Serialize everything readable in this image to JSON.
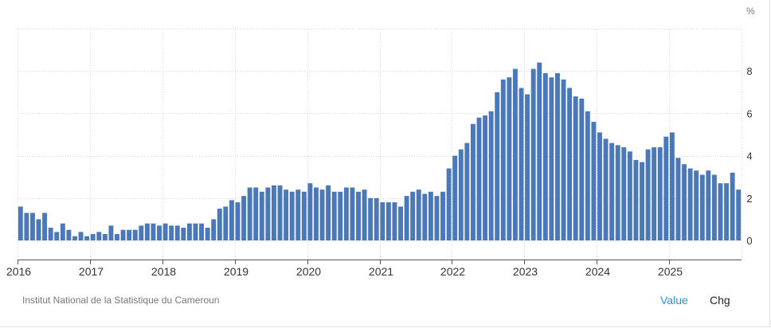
{
  "unit_label": "%",
  "source": "Institut National de la Statistique du Cameroun",
  "toggles": {
    "value": "Value",
    "chg": "Chg"
  },
  "colors": {
    "bar": "#4a78b9",
    "active_toggle": "#2a93d5",
    "grid": "#d9d9d9"
  },
  "chart_data": {
    "type": "bar",
    "title": "",
    "xlabel": "",
    "ylabel": "%",
    "ylim": [
      -0.9,
      10
    ],
    "y_ticks": [
      0,
      2,
      4,
      6,
      8
    ],
    "x_tick_labels": [
      "2016",
      "2017",
      "2018",
      "2019",
      "2020",
      "2021",
      "2022",
      "2023",
      "2024",
      "2025"
    ],
    "grid": true,
    "start_period": "2016-01",
    "frequency": "monthly",
    "values": [
      1.6,
      1.3,
      1.3,
      1.0,
      1.3,
      0.6,
      0.4,
      0.8,
      0.5,
      0.2,
      0.4,
      0.2,
      0.3,
      0.4,
      0.3,
      0.7,
      0.3,
      0.5,
      0.5,
      0.5,
      0.7,
      0.8,
      0.8,
      0.7,
      0.8,
      0.7,
      0.7,
      0.6,
      0.8,
      0.8,
      0.8,
      0.6,
      1.0,
      1.5,
      1.6,
      1.9,
      1.8,
      2.1,
      2.5,
      2.5,
      2.3,
      2.5,
      2.6,
      2.6,
      2.4,
      2.3,
      2.4,
      2.3,
      2.7,
      2.5,
      2.4,
      2.6,
      2.3,
      2.3,
      2.5,
      2.5,
      2.3,
      2.4,
      2.0,
      2.0,
      1.8,
      1.8,
      1.8,
      1.6,
      2.1,
      2.3,
      2.4,
      2.2,
      2.3,
      2.1,
      2.3,
      3.4,
      4.0,
      4.3,
      4.6,
      5.5,
      5.8,
      5.9,
      6.1,
      7.0,
      7.6,
      7.7,
      8.1,
      7.2,
      6.9,
      8.1,
      8.4,
      7.9,
      7.7,
      7.9,
      7.6,
      7.2,
      6.8,
      6.7,
      6.1,
      5.6,
      5.1,
      4.8,
      4.6,
      4.5,
      4.4,
      4.2,
      3.8,
      3.7,
      4.3,
      4.4,
      4.4,
      4.9,
      5.1,
      3.9,
      3.6,
      3.4,
      3.3,
      3.1,
      3.3,
      3.1,
      2.7,
      2.7,
      3.2,
      2.4
    ]
  }
}
